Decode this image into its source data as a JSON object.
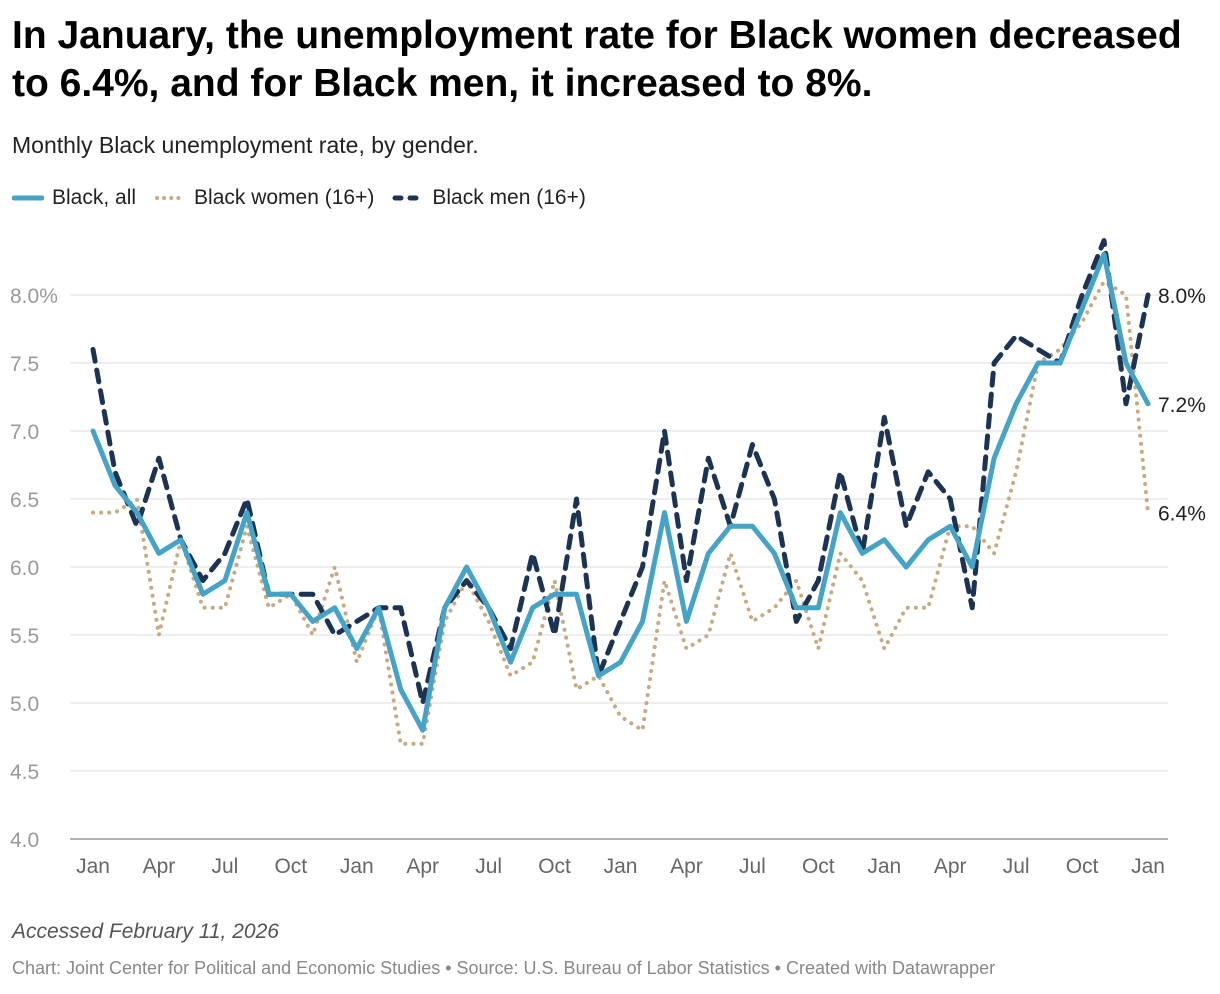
{
  "title": "In January, the unemployment rate for Black women decreased to 6.4%, and for Black men, it increased to 8%.",
  "subtitle": "Monthly Black unemployment rate, by gender.",
  "footer": {
    "accessed": "Accessed February 11, 2026",
    "chart_credit": "Chart: Joint Center for Political and Economic Studies",
    "source": "Source: U.S. Bureau of Labor Statistics",
    "created_with": "Created with Datawrapper",
    "separator": " • "
  },
  "colors": {
    "all": "#44a3c6",
    "women": "#c8aa82",
    "men": "#1d3354",
    "grid": "#dddddd",
    "axis": "#999999"
  },
  "chart_data": {
    "type": "line",
    "title": "In January, the unemployment rate for Black women decreased to 6.4%, and for Black men, it increased to 8%.",
    "subtitle": "Monthly Black unemployment rate, by gender.",
    "xlabel": "",
    "ylabel": "",
    "ylim": [
      4.0,
      8.3
    ],
    "yticks": [
      4.0,
      4.5,
      5.0,
      5.5,
      6.0,
      6.5,
      7.0,
      7.5,
      8.0
    ],
    "ytick_labels": [
      "4.0",
      "4.5",
      "5.0",
      "5.5",
      "6.0",
      "6.5",
      "7.0",
      "7.5",
      "8.0%"
    ],
    "x_tick_labels": [
      "Jan",
      "Apr",
      "Jul",
      "Oct",
      "Jan",
      "Apr",
      "Jul",
      "Oct",
      "Jan",
      "Apr",
      "Jul",
      "Oct",
      "Jan",
      "Apr",
      "Jul",
      "Oct",
      "Jan"
    ],
    "x_tick_index": [
      0,
      3,
      6,
      9,
      12,
      15,
      18,
      21,
      24,
      27,
      30,
      33,
      36,
      39,
      42,
      45,
      48
    ],
    "legend_position": "top-left",
    "grid": true,
    "series": [
      {
        "name": "Black, all",
        "key": "all",
        "style": "solid",
        "values": [
          7.0,
          6.6,
          6.4,
          6.1,
          6.2,
          5.8,
          5.9,
          6.4,
          5.8,
          5.8,
          5.6,
          5.7,
          5.4,
          5.7,
          5.1,
          4.8,
          5.7,
          6.0,
          5.7,
          5.3,
          5.7,
          5.8,
          5.8,
          5.2,
          5.3,
          5.6,
          6.4,
          5.6,
          6.1,
          6.3,
          6.3,
          6.1,
          5.7,
          5.7,
          6.4,
          6.1,
          6.2,
          6.0,
          6.2,
          6.3,
          6.0,
          6.8,
          7.2,
          7.5,
          7.5,
          7.9,
          8.3,
          7.5,
          7.2
        ],
        "end_label": "7.2%"
      },
      {
        "name": "Black women (16+)",
        "key": "women",
        "style": "dotted",
        "values": [
          6.4,
          6.4,
          6.5,
          5.5,
          6.2,
          5.7,
          5.7,
          6.3,
          5.7,
          5.8,
          5.5,
          6.0,
          5.3,
          5.7,
          4.7,
          4.7,
          5.6,
          5.9,
          5.6,
          5.2,
          5.3,
          5.9,
          5.1,
          5.2,
          4.9,
          4.8,
          5.9,
          5.4,
          5.5,
          6.1,
          5.6,
          5.7,
          5.9,
          5.4,
          6.1,
          5.9,
          5.4,
          5.7,
          5.7,
          6.3,
          6.3,
          6.1,
          6.7,
          7.5,
          7.6,
          7.8,
          8.1,
          8.0,
          6.4
        ],
        "end_label": "6.4%"
      },
      {
        "name": "Black men (16+)",
        "key": "men",
        "style": "dashed",
        "values": [
          7.6,
          6.7,
          6.3,
          6.8,
          6.2,
          5.9,
          6.1,
          6.5,
          5.8,
          5.8,
          5.8,
          5.5,
          5.6,
          5.7,
          5.7,
          5.0,
          5.7,
          5.9,
          5.7,
          5.4,
          6.1,
          5.5,
          6.5,
          5.2,
          5.6,
          6.0,
          7.0,
          5.9,
          6.8,
          6.3,
          6.9,
          6.5,
          5.6,
          5.9,
          6.7,
          6.1,
          7.1,
          6.3,
          6.7,
          6.5,
          5.7,
          7.5,
          7.7,
          7.6,
          7.5,
          8.0,
          8.4,
          7.2,
          8.0
        ],
        "end_label": "8.0%"
      }
    ]
  }
}
